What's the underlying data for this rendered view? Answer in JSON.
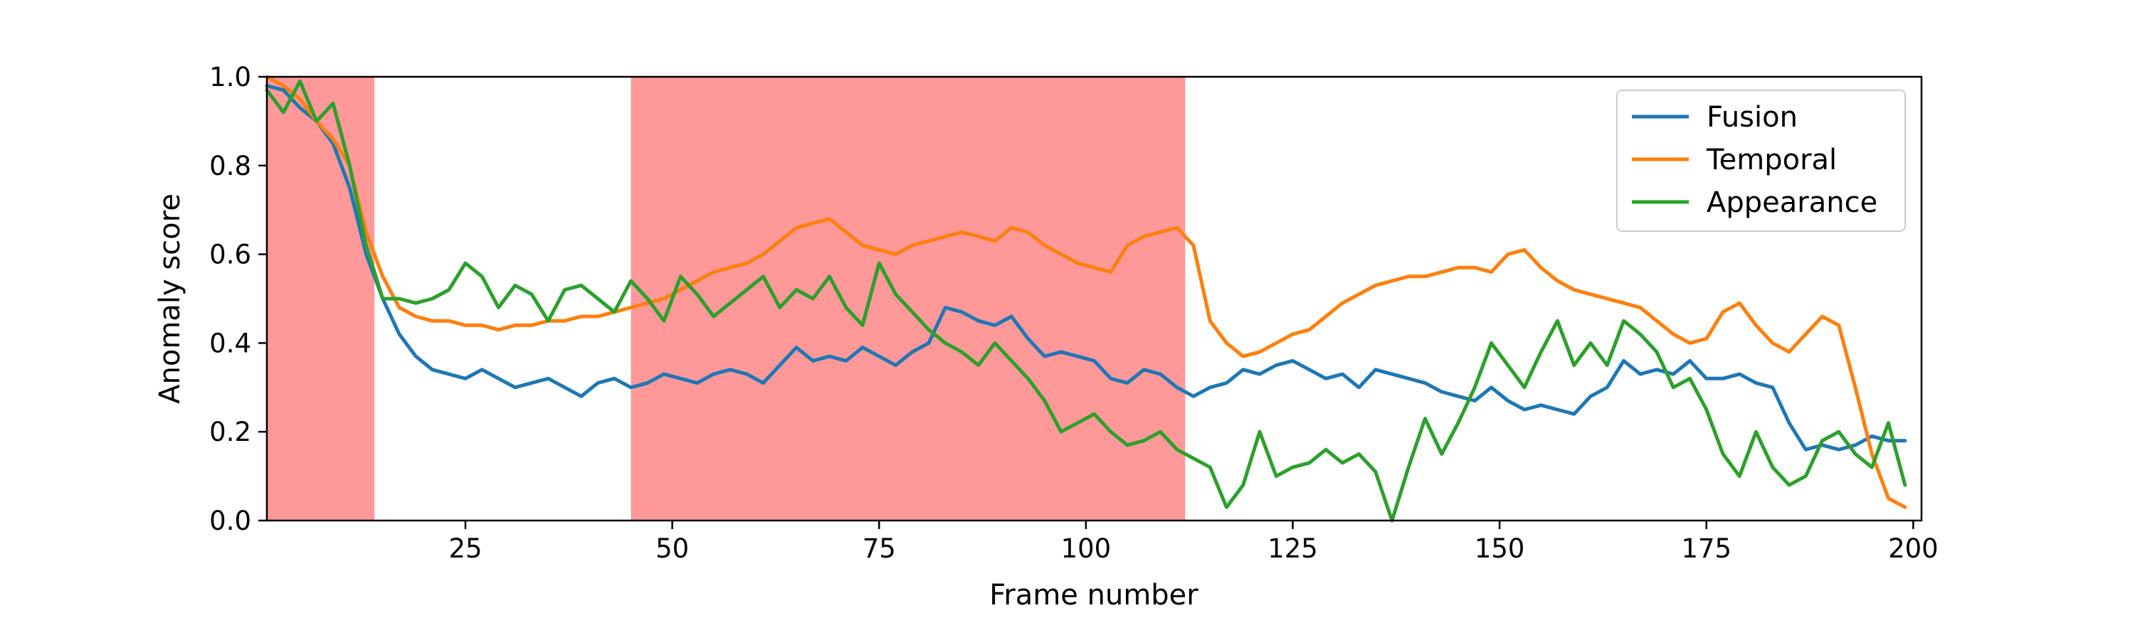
{
  "chart_data": {
    "type": "line",
    "title": "",
    "xlabel": "Frame number",
    "ylabel": "Anomaly score",
    "xlim": [
      1,
      201
    ],
    "ylim": [
      0,
      1.0
    ],
    "x_ticks": [
      25,
      50,
      75,
      100,
      125,
      150,
      175,
      200
    ],
    "y_ticks": [
      "0.0",
      "0.2",
      "0.4",
      "0.6",
      "0.8",
      "1.0"
    ],
    "grid": false,
    "legend_position": "top-right",
    "colors": {
      "Fusion": "#1f77b4",
      "Temporal": "#ff7f0e",
      "Appearance": "#2ca02c",
      "highlight": "#ff9999"
    },
    "highlight_regions": [
      [
        1,
        14
      ],
      [
        45,
        112
      ]
    ],
    "series": [
      {
        "name": "Fusion",
        "points": [
          [
            1,
            0.98
          ],
          [
            3,
            0.97
          ],
          [
            5,
            0.93
          ],
          [
            7,
            0.9
          ],
          [
            9,
            0.85
          ],
          [
            11,
            0.75
          ],
          [
            13,
            0.6
          ],
          [
            15,
            0.5
          ],
          [
            17,
            0.42
          ],
          [
            19,
            0.37
          ],
          [
            21,
            0.34
          ],
          [
            23,
            0.33
          ],
          [
            25,
            0.32
          ],
          [
            27,
            0.34
          ],
          [
            29,
            0.32
          ],
          [
            31,
            0.3
          ],
          [
            33,
            0.31
          ],
          [
            35,
            0.32
          ],
          [
            37,
            0.3
          ],
          [
            39,
            0.28
          ],
          [
            41,
            0.31
          ],
          [
            43,
            0.32
          ],
          [
            45,
            0.3
          ],
          [
            47,
            0.31
          ],
          [
            49,
            0.33
          ],
          [
            51,
            0.32
          ],
          [
            53,
            0.31
          ],
          [
            55,
            0.33
          ],
          [
            57,
            0.34
          ],
          [
            59,
            0.33
          ],
          [
            61,
            0.31
          ],
          [
            63,
            0.35
          ],
          [
            65,
            0.39
          ],
          [
            67,
            0.36
          ],
          [
            69,
            0.37
          ],
          [
            71,
            0.36
          ],
          [
            73,
            0.39
          ],
          [
            75,
            0.37
          ],
          [
            77,
            0.35
          ],
          [
            79,
            0.38
          ],
          [
            81,
            0.4
          ],
          [
            83,
            0.48
          ],
          [
            85,
            0.47
          ],
          [
            87,
            0.45
          ],
          [
            89,
            0.44
          ],
          [
            91,
            0.46
          ],
          [
            93,
            0.41
          ],
          [
            95,
            0.37
          ],
          [
            97,
            0.38
          ],
          [
            99,
            0.37
          ],
          [
            101,
            0.36
          ],
          [
            103,
            0.32
          ],
          [
            105,
            0.31
          ],
          [
            107,
            0.34
          ],
          [
            109,
            0.33
          ],
          [
            111,
            0.3
          ],
          [
            113,
            0.28
          ],
          [
            115,
            0.3
          ],
          [
            117,
            0.31
          ],
          [
            119,
            0.34
          ],
          [
            121,
            0.33
          ],
          [
            123,
            0.35
          ],
          [
            125,
            0.36
          ],
          [
            127,
            0.34
          ],
          [
            129,
            0.32
          ],
          [
            131,
            0.33
          ],
          [
            133,
            0.3
          ],
          [
            135,
            0.34
          ],
          [
            137,
            0.33
          ],
          [
            139,
            0.32
          ],
          [
            141,
            0.31
          ],
          [
            143,
            0.29
          ],
          [
            145,
            0.28
          ],
          [
            147,
            0.27
          ],
          [
            149,
            0.3
          ],
          [
            151,
            0.27
          ],
          [
            153,
            0.25
          ],
          [
            155,
            0.26
          ],
          [
            157,
            0.25
          ],
          [
            159,
            0.24
          ],
          [
            161,
            0.28
          ],
          [
            163,
            0.3
          ],
          [
            165,
            0.36
          ],
          [
            167,
            0.33
          ],
          [
            169,
            0.34
          ],
          [
            171,
            0.33
          ],
          [
            173,
            0.36
          ],
          [
            175,
            0.32
          ],
          [
            177,
            0.32
          ],
          [
            179,
            0.33
          ],
          [
            181,
            0.31
          ],
          [
            183,
            0.3
          ],
          [
            185,
            0.22
          ],
          [
            187,
            0.16
          ],
          [
            189,
            0.17
          ],
          [
            191,
            0.16
          ],
          [
            193,
            0.17
          ],
          [
            195,
            0.19
          ],
          [
            197,
            0.18
          ],
          [
            199,
            0.18
          ]
        ]
      },
      {
        "name": "Temporal",
        "points": [
          [
            1,
            1.0
          ],
          [
            3,
            0.98
          ],
          [
            5,
            0.95
          ],
          [
            7,
            0.9
          ],
          [
            9,
            0.86
          ],
          [
            11,
            0.8
          ],
          [
            13,
            0.65
          ],
          [
            15,
            0.55
          ],
          [
            17,
            0.48
          ],
          [
            19,
            0.46
          ],
          [
            21,
            0.45
          ],
          [
            23,
            0.45
          ],
          [
            25,
            0.44
          ],
          [
            27,
            0.44
          ],
          [
            29,
            0.43
          ],
          [
            31,
            0.44
          ],
          [
            33,
            0.44
          ],
          [
            35,
            0.45
          ],
          [
            37,
            0.45
          ],
          [
            39,
            0.46
          ],
          [
            41,
            0.46
          ],
          [
            43,
            0.47
          ],
          [
            45,
            0.48
          ],
          [
            47,
            0.49
          ],
          [
            49,
            0.5
          ],
          [
            51,
            0.52
          ],
          [
            53,
            0.54
          ],
          [
            55,
            0.56
          ],
          [
            57,
            0.57
          ],
          [
            59,
            0.58
          ],
          [
            61,
            0.6
          ],
          [
            63,
            0.63
          ],
          [
            65,
            0.66
          ],
          [
            67,
            0.67
          ],
          [
            69,
            0.68
          ],
          [
            71,
            0.65
          ],
          [
            73,
            0.62
          ],
          [
            75,
            0.61
          ],
          [
            77,
            0.6
          ],
          [
            79,
            0.62
          ],
          [
            81,
            0.63
          ],
          [
            83,
            0.64
          ],
          [
            85,
            0.65
          ],
          [
            87,
            0.64
          ],
          [
            89,
            0.63
          ],
          [
            91,
            0.66
          ],
          [
            93,
            0.65
          ],
          [
            95,
            0.62
          ],
          [
            97,
            0.6
          ],
          [
            99,
            0.58
          ],
          [
            101,
            0.57
          ],
          [
            103,
            0.56
          ],
          [
            105,
            0.62
          ],
          [
            107,
            0.64
          ],
          [
            109,
            0.65
          ],
          [
            111,
            0.66
          ],
          [
            113,
            0.62
          ],
          [
            115,
            0.45
          ],
          [
            117,
            0.4
          ],
          [
            119,
            0.37
          ],
          [
            121,
            0.38
          ],
          [
            123,
            0.4
          ],
          [
            125,
            0.42
          ],
          [
            127,
            0.43
          ],
          [
            129,
            0.46
          ],
          [
            131,
            0.49
          ],
          [
            133,
            0.51
          ],
          [
            135,
            0.53
          ],
          [
            137,
            0.54
          ],
          [
            139,
            0.55
          ],
          [
            141,
            0.55
          ],
          [
            143,
            0.56
          ],
          [
            145,
            0.57
          ],
          [
            147,
            0.57
          ],
          [
            149,
            0.56
          ],
          [
            151,
            0.6
          ],
          [
            153,
            0.61
          ],
          [
            155,
            0.57
          ],
          [
            157,
            0.54
          ],
          [
            159,
            0.52
          ],
          [
            161,
            0.51
          ],
          [
            163,
            0.5
          ],
          [
            165,
            0.49
          ],
          [
            167,
            0.48
          ],
          [
            169,
            0.45
          ],
          [
            171,
            0.42
          ],
          [
            173,
            0.4
          ],
          [
            175,
            0.41
          ],
          [
            177,
            0.47
          ],
          [
            179,
            0.49
          ],
          [
            181,
            0.44
          ],
          [
            183,
            0.4
          ],
          [
            185,
            0.38
          ],
          [
            187,
            0.42
          ],
          [
            189,
            0.46
          ],
          [
            191,
            0.44
          ],
          [
            193,
            0.3
          ],
          [
            195,
            0.15
          ],
          [
            197,
            0.05
          ],
          [
            199,
            0.03
          ]
        ]
      },
      {
        "name": "Appearance",
        "points": [
          [
            1,
            0.97
          ],
          [
            3,
            0.92
          ],
          [
            5,
            0.99
          ],
          [
            7,
            0.9
          ],
          [
            9,
            0.94
          ],
          [
            11,
            0.8
          ],
          [
            13,
            0.62
          ],
          [
            15,
            0.5
          ],
          [
            17,
            0.5
          ],
          [
            19,
            0.49
          ],
          [
            21,
            0.5
          ],
          [
            23,
            0.52
          ],
          [
            25,
            0.58
          ],
          [
            27,
            0.55
          ],
          [
            29,
            0.48
          ],
          [
            31,
            0.53
          ],
          [
            33,
            0.51
          ],
          [
            35,
            0.45
          ],
          [
            37,
            0.52
          ],
          [
            39,
            0.53
          ],
          [
            41,
            0.5
          ],
          [
            43,
            0.47
          ],
          [
            45,
            0.54
          ],
          [
            47,
            0.5
          ],
          [
            49,
            0.45
          ],
          [
            51,
            0.55
          ],
          [
            53,
            0.51
          ],
          [
            55,
            0.46
          ],
          [
            57,
            0.49
          ],
          [
            59,
            0.52
          ],
          [
            61,
            0.55
          ],
          [
            63,
            0.48
          ],
          [
            65,
            0.52
          ],
          [
            67,
            0.5
          ],
          [
            69,
            0.55
          ],
          [
            71,
            0.48
          ],
          [
            73,
            0.44
          ],
          [
            75,
            0.58
          ],
          [
            77,
            0.51
          ],
          [
            79,
            0.47
          ],
          [
            81,
            0.43
          ],
          [
            83,
            0.4
          ],
          [
            85,
            0.38
          ],
          [
            87,
            0.35
          ],
          [
            89,
            0.4
          ],
          [
            91,
            0.36
          ],
          [
            93,
            0.32
          ],
          [
            95,
            0.27
          ],
          [
            97,
            0.2
          ],
          [
            99,
            0.22
          ],
          [
            101,
            0.24
          ],
          [
            103,
            0.2
          ],
          [
            105,
            0.17
          ],
          [
            107,
            0.18
          ],
          [
            109,
            0.2
          ],
          [
            111,
            0.16
          ],
          [
            113,
            0.14
          ],
          [
            115,
            0.12
          ],
          [
            117,
            0.03
          ],
          [
            119,
            0.08
          ],
          [
            121,
            0.2
          ],
          [
            123,
            0.1
          ],
          [
            125,
            0.12
          ],
          [
            127,
            0.13
          ],
          [
            129,
            0.16
          ],
          [
            131,
            0.13
          ],
          [
            133,
            0.15
          ],
          [
            135,
            0.11
          ],
          [
            137,
            0.0
          ],
          [
            139,
            0.12
          ],
          [
            141,
            0.23
          ],
          [
            143,
            0.15
          ],
          [
            145,
            0.22
          ],
          [
            147,
            0.3
          ],
          [
            149,
            0.4
          ],
          [
            151,
            0.35
          ],
          [
            153,
            0.3
          ],
          [
            155,
            0.38
          ],
          [
            157,
            0.45
          ],
          [
            159,
            0.35
          ],
          [
            161,
            0.4
          ],
          [
            163,
            0.35
          ],
          [
            165,
            0.45
          ],
          [
            167,
            0.42
          ],
          [
            169,
            0.38
          ],
          [
            171,
            0.3
          ],
          [
            173,
            0.32
          ],
          [
            175,
            0.25
          ],
          [
            177,
            0.15
          ],
          [
            179,
            0.1
          ],
          [
            181,
            0.2
          ],
          [
            183,
            0.12
          ],
          [
            185,
            0.08
          ],
          [
            187,
            0.1
          ],
          [
            189,
            0.18
          ],
          [
            191,
            0.2
          ],
          [
            193,
            0.15
          ],
          [
            195,
            0.12
          ],
          [
            197,
            0.22
          ],
          [
            199,
            0.08
          ]
        ]
      }
    ]
  }
}
